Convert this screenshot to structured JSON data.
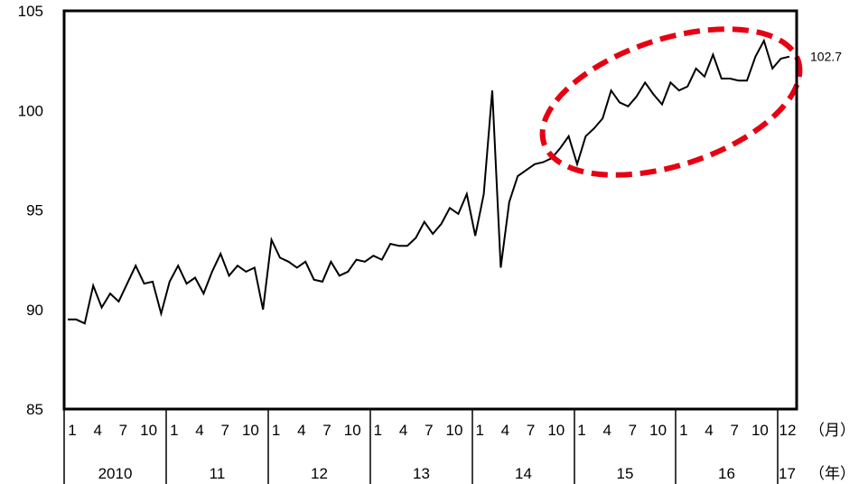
{
  "chart_data": {
    "type": "line",
    "ylim": [
      85,
      105
    ],
    "y_ticks": [
      "105",
      "100",
      "95",
      "90",
      "85"
    ],
    "grid": false,
    "end_label": "102.7",
    "month_ticks": [
      "1",
      "4",
      "7",
      "10"
    ],
    "final_month_tick": "12",
    "years": [
      "2010",
      "11",
      "12",
      "13",
      "14",
      "15",
      "16",
      "17"
    ],
    "month_unit": "（月）",
    "year_unit": "（年）",
    "series": [
      {
        "color": "#000000",
        "values": [
          89.5,
          89.5,
          89.3,
          91.2,
          90.1,
          90.8,
          90.4,
          91.3,
          92.2,
          91.3,
          91.4,
          89.8,
          91.4,
          92.2,
          91.3,
          91.6,
          90.8,
          91.9,
          92.8,
          91.7,
          92.2,
          91.9,
          92.1,
          90.0,
          93.5,
          92.6,
          92.4,
          92.1,
          92.4,
          91.5,
          91.4,
          92.4,
          91.7,
          91.9,
          92.5,
          92.4,
          92.7,
          92.5,
          93.3,
          93.2,
          93.2,
          93.6,
          94.4,
          93.8,
          94.3,
          95.1,
          94.8,
          95.8,
          93.7,
          95.8,
          101.0,
          92.1,
          95.4,
          96.7,
          97.0,
          97.3,
          97.4,
          97.6,
          98.1,
          98.7,
          97.3,
          98.7,
          99.1,
          99.6,
          101.0,
          100.4,
          100.2,
          100.7,
          101.4,
          100.8,
          100.3,
          101.4,
          101.0,
          101.2,
          102.1,
          101.7,
          102.8,
          101.6,
          101.6,
          101.5,
          101.5,
          102.7,
          103.5,
          102.1,
          102.6,
          102.7
        ]
      }
    ],
    "annotation": {
      "shape": "ellipse",
      "color": "#e60012",
      "style": "dashed"
    }
  }
}
